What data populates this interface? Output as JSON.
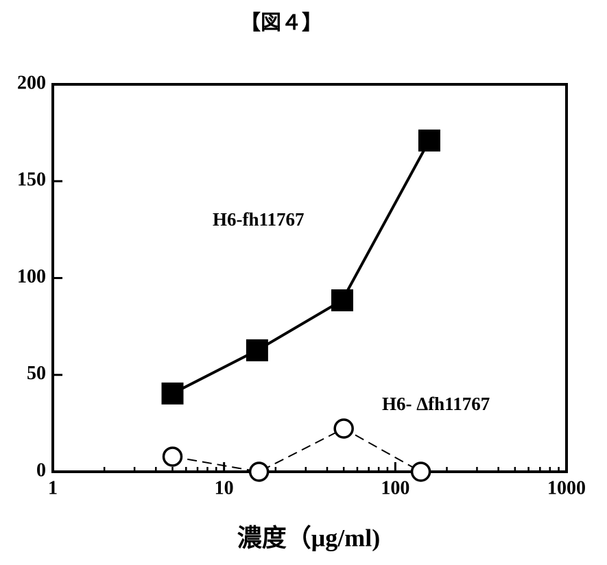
{
  "chart_data": {
    "type": "line",
    "title": "【図４】",
    "x_label": "濃度（μg/ml)",
    "xscale": "log",
    "xlim": [
      1,
      1000
    ],
    "xticks": [
      1,
      10,
      100,
      1000
    ],
    "xminorticks": [
      2,
      3,
      4,
      5,
      6,
      7,
      8,
      9,
      20,
      30,
      40,
      50,
      60,
      70,
      80,
      90,
      200,
      300,
      400,
      500,
      600,
      700,
      800,
      900
    ],
    "ylim": [
      0,
      200
    ],
    "yticks": [
      0,
      50,
      100,
      150,
      200
    ],
    "grid": false,
    "series": [
      {
        "name": "H6-fh11767",
        "color": "#000000",
        "marker": "square",
        "dashed": false,
        "x": [
          5,
          15.6,
          49,
          158
        ],
        "values": [
          40.4,
          62.7,
          88.5,
          171
        ]
      },
      {
        "name": "H6- Δfh11767",
        "color": "#000000",
        "marker": "circle",
        "dashed": true,
        "x": [
          5,
          16,
          50,
          141
        ],
        "values": [
          7.8,
          0,
          22.3,
          0
        ]
      }
    ]
  }
}
